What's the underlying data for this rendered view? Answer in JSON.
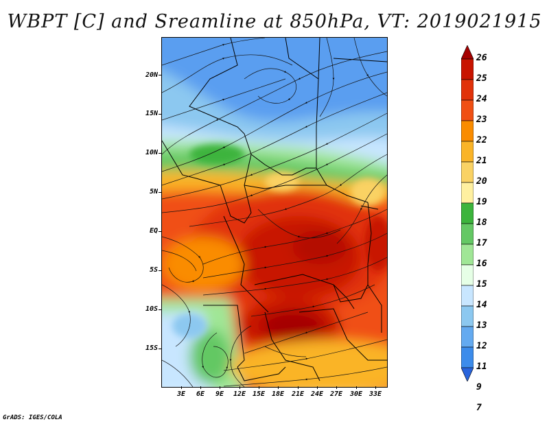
{
  "title": "WBPT [C] and Sreamline at 850hPa, VT: 2019021915",
  "footer": "GrADS: IGES/COLA",
  "map": {
    "lat_labels": [
      "20N",
      "15N",
      "10N",
      "5N",
      "EQ",
      "5S",
      "10S",
      "15S"
    ],
    "lon_labels": [
      "3E",
      "6E",
      "9E",
      "12E",
      "15E",
      "18E",
      "21E",
      "24E",
      "27E",
      "30E",
      "33E"
    ]
  },
  "colorbar": {
    "labels": [
      "26",
      "25",
      "24",
      "23",
      "22",
      "21",
      "20",
      "19",
      "18",
      "17",
      "16",
      "15",
      "14",
      "13",
      "12",
      "11",
      "9",
      "7"
    ],
    "colors": [
      "#a50000",
      "#c81400",
      "#e1320a",
      "#f05014",
      "#fa8c00",
      "#fab428",
      "#fad264",
      "#fff0a0",
      "#3cb43c",
      "#64c864",
      "#a0e696",
      "#e6ffe6",
      "#c8e6ff",
      "#8cc8f0",
      "#64aaf0",
      "#3c8ceb",
      "#2864dc"
    ]
  }
}
